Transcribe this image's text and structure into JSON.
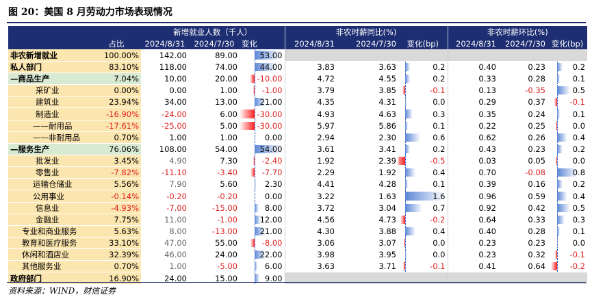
{
  "title": "图 20：美国 8 月劳动力市场表现情况",
  "source": "资料来源：WIND，财信证券",
  "header": {
    "group1": "新增就业人数（千人）",
    "group2": "非农时薪同比(%)",
    "group3": "非农时薪环比(%)",
    "share": "占比",
    "d1": "2024/8/31",
    "d2": "2024/7/30",
    "chg": "变化",
    "chgbp": "变化(bp)"
  },
  "rows": [
    {
      "label": "非农新增就业",
      "share": "100.00%",
      "e1": "142.00",
      "e2": "89.00",
      "ec": "53.00",
      "ecv": 53,
      "w1": "",
      "w2": "",
      "wc": "",
      "wcv": null,
      "m1": "",
      "m2": "",
      "mc": "",
      "mcv": null
    },
    {
      "label": "私人部门",
      "share": "83.10%",
      "e1": "118.00",
      "e2": "74.00",
      "ec": "44.00",
      "ecv": 44,
      "w1": "3.83",
      "w2": "3.63",
      "wc": "0.2",
      "wcv": 0.2,
      "m1": "0.40",
      "m2": "0.23",
      "mc": "0.2",
      "mcv": 0.2
    },
    {
      "label": "—商品生产",
      "share": "7.04%",
      "e1": "10.00",
      "e2": "20.00",
      "ec": "-10.00",
      "ecv": -10,
      "w1": "4.72",
      "w2": "4.55",
      "wc": "0.2",
      "wcv": 0.2,
      "m1": "0.33",
      "m2": "0.28",
      "mc": "0.1",
      "mcv": 0.1
    },
    {
      "label": "采矿业",
      "share": "0.00%",
      "e1": "0.00",
      "e2": "1.00",
      "ec": "-1.00",
      "ecv": -1,
      "w1": "3.79",
      "w2": "3.85",
      "wc": "-0.1",
      "wcv": -0.1,
      "m1": "0.13",
      "m2": "-0.35",
      "mc": "0.5",
      "mcv": 0.5
    },
    {
      "label": "建筑业",
      "share": "23.94%",
      "e1": "34.00",
      "e2": "13.00",
      "ec": "21.00",
      "ecv": 21,
      "w1": "4.35",
      "w2": "4.31",
      "wc": "0.0",
      "wcv": 0.04,
      "m1": "0.29",
      "m2": "0.37",
      "mc": "-0.1",
      "mcv": -0.1
    },
    {
      "label": "制造业",
      "share": "-16.90%",
      "e1": "-24.00",
      "e2": "6.00",
      "ec": "-30.00",
      "ecv": -30,
      "w1": "4.93",
      "w2": "4.63",
      "wc": "0.3",
      "wcv": 0.3,
      "m1": "0.35",
      "m2": "0.24",
      "mc": "0.1",
      "mcv": 0.1
    },
    {
      "label": "——耐用品",
      "share": "-17.61%",
      "e1": "-25.00",
      "e2": "5.00",
      "ec": "-30.00",
      "ecv": -30,
      "w1": "5.97",
      "w2": "5.86",
      "wc": "0.1",
      "wcv": 0.1,
      "m1": "0.22",
      "m2": "0.25",
      "mc": "0.0",
      "mcv": -0.03
    },
    {
      "label": "——非耐用品",
      "share": "0.70%",
      "e1": "1.00",
      "e2": "1.00",
      "ec": "0.00",
      "ecv": 0,
      "w1": "2.94",
      "w2": "2.30",
      "wc": "0.6",
      "wcv": 0.6,
      "m1": "0.62",
      "m2": "0.26",
      "mc": "0.4",
      "mcv": 0.4
    },
    {
      "label": "—服务生产",
      "share": "76.06%",
      "e1": "108.00",
      "e2": "54.00",
      "ec": "54.00",
      "ecv": 54,
      "w1": "3.61",
      "w2": "3.41",
      "wc": "0.2",
      "wcv": 0.2,
      "m1": "0.43",
      "m2": "0.23",
      "mc": "0.2",
      "mcv": 0.2
    },
    {
      "label": "批发业",
      "share": "3.45%",
      "e1": "4.90",
      "e2": "7.30",
      "ec": "-2.40",
      "ecv": -2.4,
      "w1": "1.92",
      "w2": "2.39",
      "wc": "-0.5",
      "wcv": -0.5,
      "m1": "0.03",
      "m2": "0.05",
      "mc": "0.0",
      "mcv": -0.02
    },
    {
      "label": "零售业",
      "share": "-7.82%",
      "e1": "-11.10",
      "e2": "-3.40",
      "ec": "-7.70",
      "ecv": -7.7,
      "w1": "2.29",
      "w2": "1.92",
      "wc": "0.4",
      "wcv": 0.4,
      "m1": "0.70",
      "m2": "-0.08",
      "mc": "0.8",
      "mcv": 0.8
    },
    {
      "label": "运输仓储业",
      "share": "5.56%",
      "e1": "7.90",
      "e2": "5.60",
      "ec": "2.30",
      "ecv": 2.3,
      "w1": "4.41",
      "w2": "4.28",
      "wc": "0.1",
      "wcv": 0.1,
      "m1": "0.39",
      "m2": "0.16",
      "mc": "0.2",
      "mcv": 0.2
    },
    {
      "label": "公用事业",
      "share": "-0.14%",
      "e1": "-0.20",
      "e2": "-0.20",
      "ec": "0.00",
      "ecv": 0,
      "w1": "3.22",
      "w2": "1.63",
      "wc": "1.6",
      "wcv": 1.6,
      "m1": "0.96",
      "m2": "0.59",
      "mc": "0.4",
      "mcv": 0.4
    },
    {
      "label": "信息业",
      "share": "-4.93%",
      "e1": "-7.00",
      "e2": "-15.00",
      "ec": "8.00",
      "ecv": 8,
      "w1": "3.72",
      "w2": "3.04",
      "wc": "0.7",
      "wcv": 0.7,
      "m1": "0.92",
      "m2": "0.42",
      "mc": "0.5",
      "mcv": 0.5
    },
    {
      "label": "金融业",
      "share": "7.75%",
      "e1": "11.00",
      "e2": "-1.00",
      "ec": "12.00",
      "ecv": 12,
      "w1": "4.56",
      "w2": "4.73",
      "wc": "-0.2",
      "wcv": -0.2,
      "m1": "0.64",
      "m2": "0.33",
      "mc": "0.3",
      "mcv": 0.3
    },
    {
      "label": "专业和商业服务",
      "share": "5.63%",
      "e1": "8.00",
      "e2": "-13.00",
      "ec": "21.00",
      "ecv": 21,
      "w1": "4.30",
      "w2": "3.88",
      "wc": "0.4",
      "wcv": 0.4,
      "m1": "0.40",
      "m2": "0.28",
      "mc": "0.1",
      "mcv": 0.1
    },
    {
      "label": "教育和医疗服务",
      "share": "33.10%",
      "e1": "47.00",
      "e2": "55.00",
      "ec": "-8.00",
      "ecv": -8,
      "w1": "3.06",
      "w2": "3.07",
      "wc": "0.0",
      "wcv": -0.01,
      "m1": "0.23",
      "m2": "0.23",
      "mc": "0.0",
      "mcv": 0
    },
    {
      "label": "休闲和酒店业",
      "share": "32.39%",
      "e1": "46.00",
      "e2": "24.00",
      "ec": "22.00",
      "ecv": 22,
      "w1": "3.98",
      "w2": "3.95",
      "wc": "0.0",
      "wcv": 0.03,
      "m1": "0.23",
      "m2": "0.32",
      "mc": "-0.1",
      "mcv": -0.09
    },
    {
      "label": "其他服务业",
      "share": "0.70%",
      "e1": "1.00",
      "e2": "-5.00",
      "ec": "6.00",
      "ecv": 6,
      "w1": "3.63",
      "w2": "3.71",
      "wc": "-0.1",
      "wcv": -0.08,
      "m1": "0.41",
      "m2": "0.64",
      "mc": "-0.2",
      "mcv": -0.23
    },
    {
      "label": "政府部门",
      "share": "16.90%",
      "e1": "24.00",
      "e2": "15.00",
      "ec": "9.00",
      "ecv": 9,
      "w1": "",
      "w2": "",
      "wc": "",
      "wcv": null,
      "m1": "",
      "m2": "",
      "mc": "",
      "mcv": null
    }
  ],
  "colors": {
    "header_bg": "#1e2e72",
    "label_bg": "#fce6b0",
    "section_bg": "#d9ead3",
    "negative_text": "#e02020",
    "bar_pos": "#5b86d6",
    "bar_neg": "#ff2020"
  }
}
